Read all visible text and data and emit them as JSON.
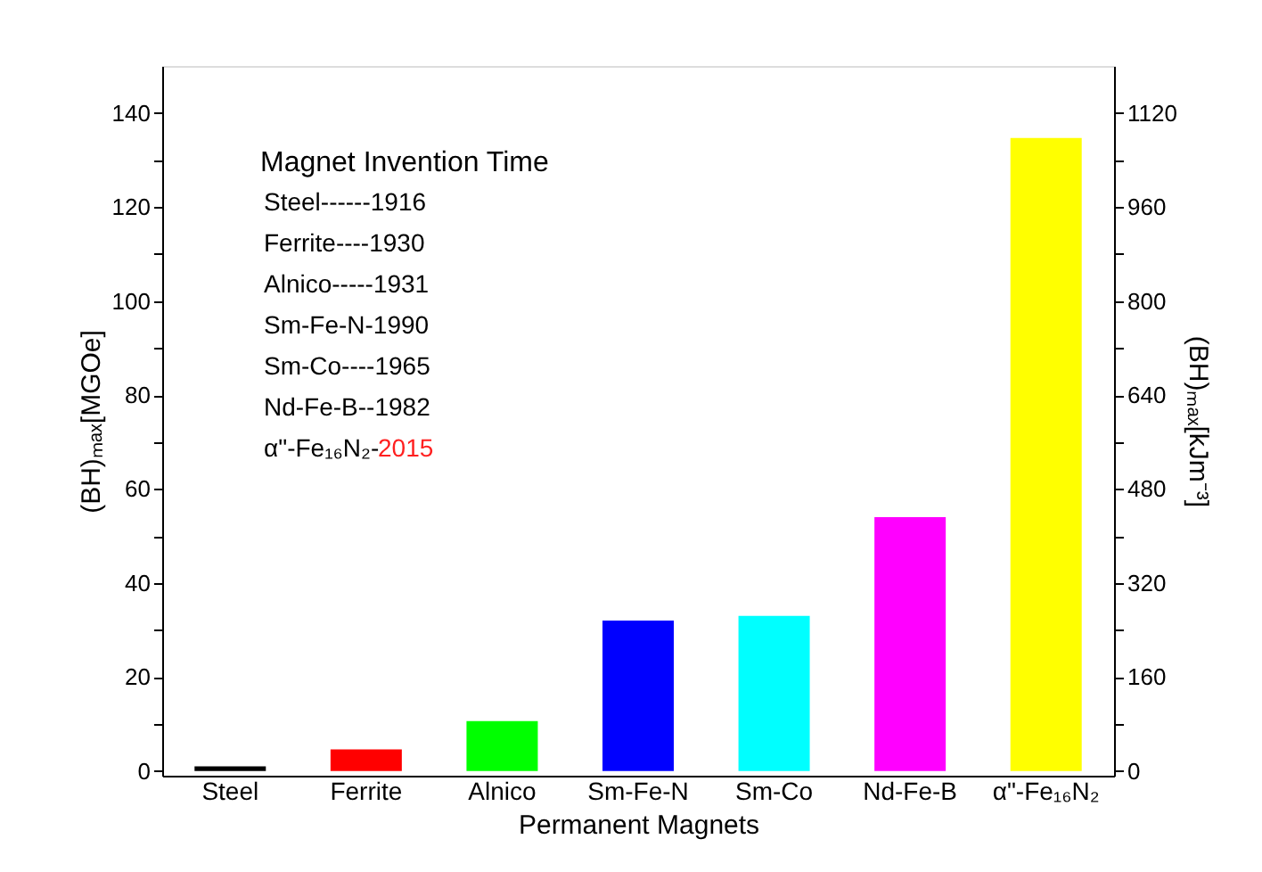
{
  "chart_data": {
    "type": "bar",
    "xlabel": "Permanent Magnets",
    "ylabel": "(BH)ₘₐₓ[MGOe]",
    "y2label": "(BH)ₘₐₓ[kJm⁻³]",
    "categories": [
      "Steel",
      "Ferrite",
      "Alnico",
      "Sm-Fe-N",
      "Sm-Co",
      "Nd-Fe-B",
      "α\"-Fe₁₆N₂"
    ],
    "values": [
      1,
      4.6,
      10.6,
      32,
      33,
      54,
      134.7
    ],
    "colors": [
      "#000000",
      "#ff0000",
      "#00ff00",
      "#0000ff",
      "#00ffff",
      "#ff00ff",
      "#ffff00"
    ],
    "ylim": [
      -1,
      150
    ],
    "yticks": [
      0,
      {
        "value": 10,
        "label": null
      },
      20,
      {
        "value": 30,
        "label": null
      },
      40,
      {
        "value": 50,
        "label": null
      },
      60,
      {
        "value": 70,
        "label": null
      },
      80,
      {
        "value": 90,
        "label": null
      },
      100,
      {
        "value": 110,
        "label": null
      },
      120,
      {
        "value": 130,
        "label": null
      },
      140
    ],
    "y2lim": [
      -8,
      1200
    ],
    "y2ticks": [
      0,
      {
        "value": 80,
        "label": null
      },
      160,
      {
        "value": 240,
        "label": null
      },
      320,
      {
        "value": 400,
        "label": null
      },
      480,
      {
        "value": 560,
        "label": null
      },
      640,
      {
        "value": 720,
        "label": null
      },
      800,
      {
        "value": 880,
        "label": null
      },
      960,
      {
        "value": 1040,
        "label": null
      },
      1120
    ],
    "annotations": [
      "Magnet Invention Time",
      "Steel------1916",
      "Ferrite----1930",
      "Alnico-----1931",
      "Sm-Fe-N-1990",
      "Sm-Co----1965",
      "Nd-Fe-B--1982",
      "α\"-Fe₁₆N₂-",
      "2015"
    ],
    "grid": false
  }
}
